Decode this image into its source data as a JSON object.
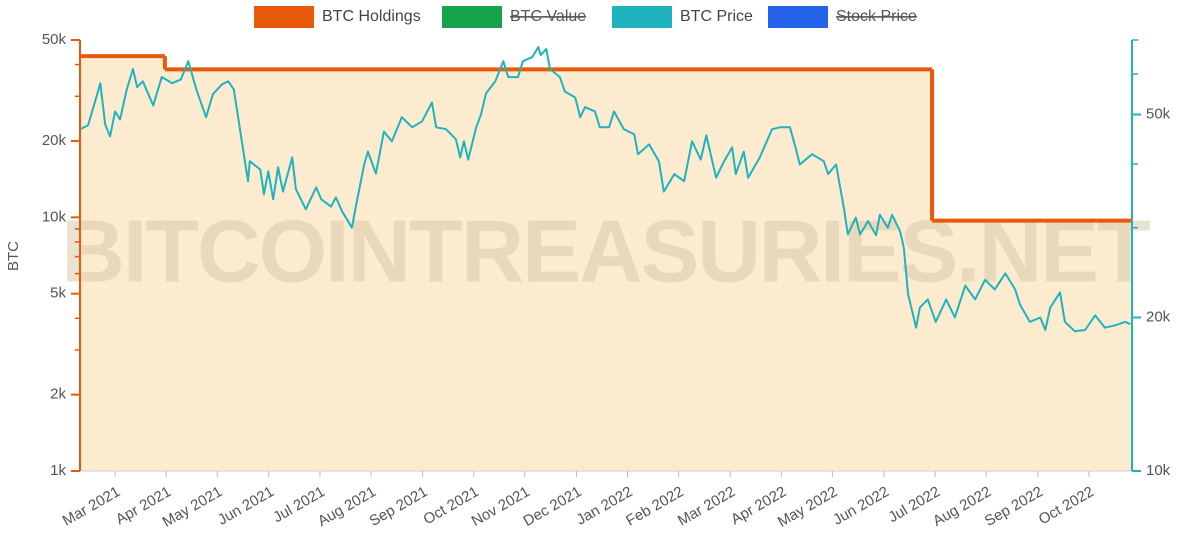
{
  "chart_data": {
    "type": "line",
    "watermark": "BITCOINTREASURIES.NET",
    "y_label": "BTC",
    "log_scale": true,
    "xlim": [
      2021.11,
      2022.82
    ],
    "xticks": [
      {
        "value": 2021.167,
        "label": "Mar 2021"
      },
      {
        "value": 2021.25,
        "label": "Apr 2021"
      },
      {
        "value": 2021.333,
        "label": "May 2021"
      },
      {
        "value": 2021.417,
        "label": "Jun 2021"
      },
      {
        "value": 2021.5,
        "label": "Jul 2021"
      },
      {
        "value": 2021.583,
        "label": "Aug 2021"
      },
      {
        "value": 2021.667,
        "label": "Sep 2021"
      },
      {
        "value": 2021.75,
        "label": "Oct 2021"
      },
      {
        "value": 2021.833,
        "label": "Nov 2021"
      },
      {
        "value": 2021.917,
        "label": "Dec 2021"
      },
      {
        "value": 2022.0,
        "label": "Jan 2022"
      },
      {
        "value": 2022.083,
        "label": "Feb 2022"
      },
      {
        "value": 2022.167,
        "label": "Mar 2022"
      },
      {
        "value": 2022.25,
        "label": "Apr 2022"
      },
      {
        "value": 2022.333,
        "label": "May 2022"
      },
      {
        "value": 2022.417,
        "label": "Jun 2022"
      },
      {
        "value": 2022.5,
        "label": "Jul 2022"
      },
      {
        "value": 2022.583,
        "label": "Aug 2022"
      },
      {
        "value": 2022.667,
        "label": "Sep 2022"
      },
      {
        "value": 2022.75,
        "label": "Oct 2022"
      }
    ],
    "ylim": [
      1000,
      50000
    ],
    "yticks": [
      {
        "value": 1000,
        "label": "1k"
      },
      {
        "value": 2000,
        "label": "2k"
      },
      {
        "value": 5000,
        "label": "5k"
      },
      {
        "value": 10000,
        "label": "10k"
      },
      {
        "value": 20000,
        "label": "20k"
      },
      {
        "value": 50000,
        "label": "50k"
      }
    ],
    "yminor": [
      3000,
      4000,
      6000,
      7000,
      8000,
      9000,
      30000,
      40000
    ],
    "y2lim": [
      10000,
      70000
    ],
    "y2ticks": [
      {
        "value": 10000,
        "label": "10k"
      },
      {
        "value": 20000,
        "label": "20k"
      },
      {
        "value": 50000,
        "label": "50k"
      }
    ],
    "y2minor": [
      30000,
      40000,
      60000,
      70000
    ],
    "series": [
      {
        "name": "BTC Holdings",
        "color": "#e8590c",
        "fill": "#fdebd0",
        "step": "post",
        "x": [
          2021.11,
          2021.248,
          2022.495
        ],
        "values": [
          43200,
          38300,
          9700
        ]
      },
      {
        "name": "BTC Value",
        "color": "#16a34a",
        "hidden": true
      },
      {
        "name": "BTC Price",
        "color": "#1fb3c0",
        "axis": "y2",
        "x": [
          2021.11,
          2021.123,
          2021.138,
          2021.143,
          2021.151,
          2021.159,
          2021.167,
          2021.175,
          2021.186,
          2021.196,
          2021.203,
          2021.212,
          2021.229,
          2021.243,
          2021.26,
          2021.274,
          2021.286,
          2021.299,
          2021.315,
          2021.326,
          2021.341,
          2021.351,
          2021.36,
          2021.367,
          2021.383,
          2021.386,
          2021.403,
          2021.409,
          2021.416,
          2021.424,
          2021.432,
          2021.44,
          2021.455,
          2021.461,
          2021.477,
          2021.494,
          2021.502,
          2021.518,
          2021.526,
          2021.536,
          2021.552,
          2021.559,
          2021.572,
          2021.578,
          2021.591,
          2021.604,
          2021.617,
          2021.633,
          2021.65,
          2021.666,
          2021.682,
          2021.689,
          2021.705,
          2021.721,
          2021.728,
          2021.734,
          2021.741,
          2021.754,
          2021.762,
          2021.77,
          2021.785,
          2021.798,
          2021.806,
          2021.822,
          2021.83,
          2021.845,
          2021.855,
          2021.859,
          2021.868,
          2021.874,
          2021.89,
          2021.898,
          2021.915,
          2021.923,
          2021.931,
          2021.947,
          2021.955,
          2021.97,
          2021.978,
          2021.994,
          2022.011,
          2022.017,
          2022.035,
          2022.051,
          2022.059,
          2022.076,
          2022.092,
          2022.105,
          2022.119,
          2022.128,
          2022.144,
          2022.157,
          2022.17,
          2022.176,
          2022.189,
          2022.196,
          2022.215,
          2022.235,
          2022.248,
          2022.264,
          2022.274,
          2022.28,
          2022.3,
          2022.319,
          2022.326,
          2022.339,
          2022.352,
          2022.358,
          2022.371,
          2022.378,
          2022.391,
          2022.404,
          2022.41,
          2022.423,
          2022.43,
          2022.443,
          2022.449,
          2022.456,
          2022.469,
          2022.475,
          2022.488,
          2022.501,
          2022.518,
          2022.532,
          2022.549,
          2022.565,
          2022.581,
          2022.597,
          2022.614,
          2022.63,
          2022.638,
          2022.654,
          2022.671,
          2022.679,
          2022.687,
          2022.703,
          2022.711,
          2022.727,
          2022.744,
          2022.76,
          2022.776,
          2022.792,
          2022.809,
          2022.817
        ],
        "values": [
          46800,
          47600,
          54800,
          57600,
          47800,
          45300,
          50700,
          48900,
          56000,
          61400,
          56600,
          58100,
          52100,
          59200,
          57600,
          58600,
          63600,
          56000,
          49400,
          54800,
          57300,
          58100,
          56000,
          49400,
          37000,
          40500,
          39000,
          34900,
          38700,
          34100,
          39400,
          35300,
          41200,
          35700,
          32600,
          36000,
          34100,
          33000,
          34400,
          32300,
          30000,
          33300,
          39900,
          42300,
          38300,
          46300,
          44300,
          49400,
          47200,
          48500,
          52800,
          47200,
          46800,
          44700,
          41200,
          44300,
          40800,
          47200,
          50100,
          55000,
          58100,
          63600,
          59200,
          59200,
          63600,
          64800,
          67800,
          65400,
          67200,
          61400,
          59200,
          55500,
          54000,
          49400,
          51700,
          50700,
          47200,
          47200,
          50700,
          46800,
          45700,
          41800,
          43700,
          40500,
          35300,
          38200,
          37000,
          44300,
          40800,
          45500,
          37600,
          40500,
          43100,
          38200,
          42300,
          37600,
          41200,
          46800,
          47200,
          47200,
          42700,
          39900,
          41800,
          40500,
          38200,
          39900,
          32600,
          29100,
          31400,
          29100,
          30900,
          29000,
          31800,
          30000,
          31800,
          29500,
          27400,
          22200,
          19100,
          20900,
          21700,
          19600,
          21700,
          20000,
          23100,
          21700,
          23700,
          22700,
          24400,
          22700,
          21200,
          19600,
          20000,
          18900,
          20900,
          22400,
          19600,
          18800,
          18900,
          20200,
          19100,
          19300,
          19600,
          19400
        ]
      },
      {
        "name": "Stock Price",
        "color": "#2563eb",
        "hidden": true
      }
    ]
  }
}
